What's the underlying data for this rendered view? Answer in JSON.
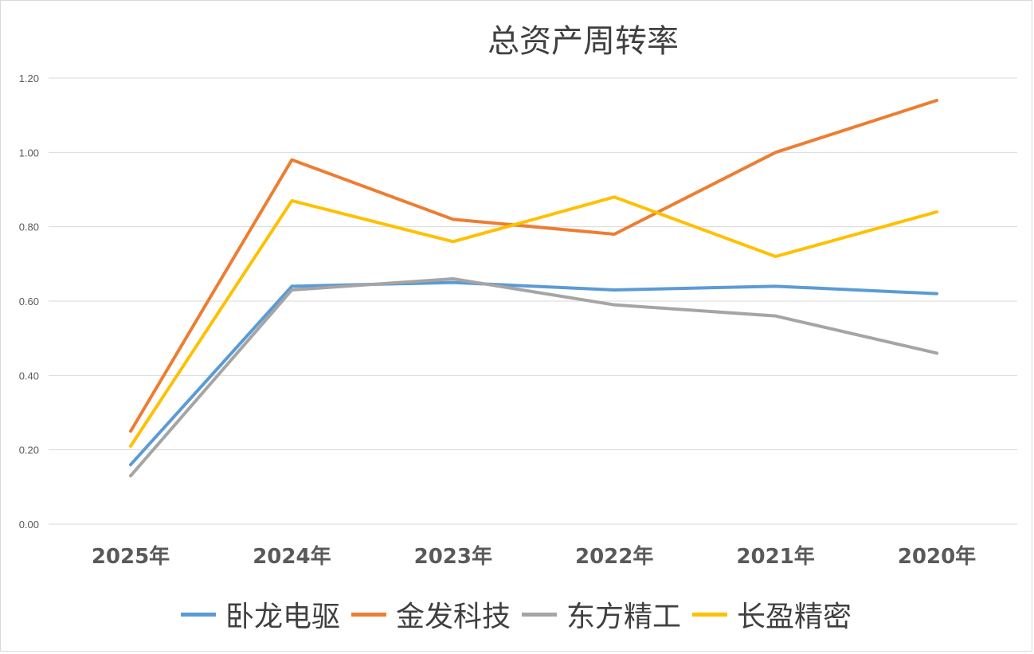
{
  "chart_data": {
    "type": "line",
    "title": "总资产周转率",
    "categories": [
      "2025年",
      "2024年",
      "2023年",
      "2022年",
      "2021年",
      "2020年"
    ],
    "ylim": [
      0,
      1.2
    ],
    "yticks": [
      "0.00",
      "0.20",
      "0.40",
      "0.60",
      "0.80",
      "1.00",
      "1.20"
    ],
    "grid": true,
    "legend_position": "bottom",
    "series": [
      {
        "name": "卧龙电驱",
        "color": "#5b9bd5",
        "values": [
          0.16,
          0.64,
          0.65,
          0.63,
          0.64,
          0.62
        ]
      },
      {
        "name": "金发科技",
        "color": "#ed7d31",
        "values": [
          0.25,
          0.98,
          0.82,
          0.78,
          1.0,
          1.14
        ]
      },
      {
        "name": "东方精工",
        "color": "#a5a5a5",
        "values": [
          0.13,
          0.63,
          0.66,
          0.59,
          0.56,
          0.46
        ]
      },
      {
        "name": "长盈精密",
        "color": "#ffc000",
        "values": [
          0.21,
          0.87,
          0.76,
          0.88,
          0.72,
          0.84
        ]
      }
    ]
  }
}
